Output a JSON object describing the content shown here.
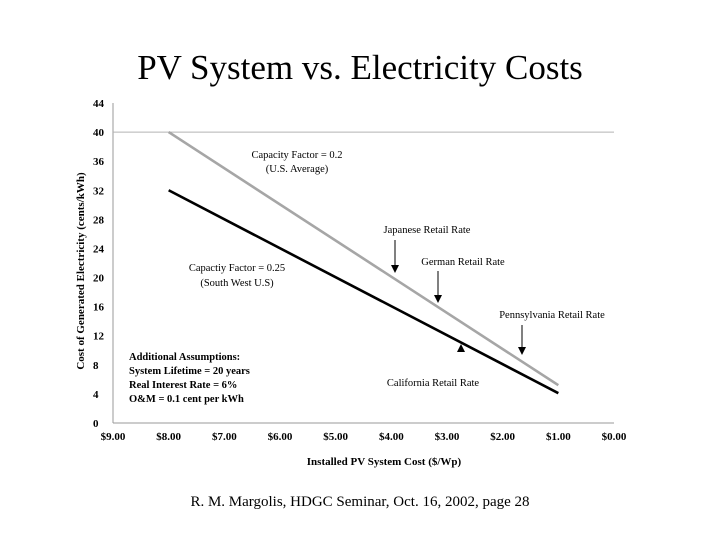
{
  "title": "PV System vs. Electricity Costs",
  "footer": "R. M. Margolis, HDGC Seminar, Oct. 16, 2002, page 28",
  "chart_data": {
    "type": "line",
    "xlabel": "Installed PV System Cost ($/Wp)",
    "ylabel": "Cost of Generated Electricity (cents/kWh)",
    "xlim": [
      9,
      0
    ],
    "ylim": [
      0,
      44
    ],
    "x_ticks": [
      "$9.00",
      "$8.00",
      "$7.00",
      "$6.00",
      "$5.00",
      "$4.00",
      "$3.00",
      "$2.00",
      "$1.00",
      "$0.00"
    ],
    "y_ticks": [
      "44",
      "40",
      "36",
      "32",
      "28",
      "24",
      "20",
      "16",
      "12",
      "8",
      "4",
      "0"
    ],
    "reference_line_y": 40,
    "series": [
      {
        "color": "#a6a6a6",
        "x": [
          8.0,
          1.0
        ],
        "y": [
          40,
          5.2
        ]
      },
      {
        "color": "#000000",
        "x": [
          8.0,
          1.0
        ],
        "y": [
          32,
          4.1
        ]
      }
    ],
    "annotations": {
      "cf02_line1": "Capacity Factor = 0.2",
      "cf02_line2": "(U.S. Average)",
      "cf025_line1": "Capactiy Factor = 0.25",
      "cf025_line2": "(South West U.S)",
      "japanese": "Japanese Retail Rate",
      "german": "German Retail Rate",
      "pennsylvania": "Pennsylvania Retail Rate",
      "california": "California Retail Rate"
    },
    "assumptions": [
      "Additional Assumptions:",
      "System Lifetime = 20 years",
      "Real Interest Rate = 6%",
      "O&M = 0.1 cent per kWh"
    ]
  }
}
